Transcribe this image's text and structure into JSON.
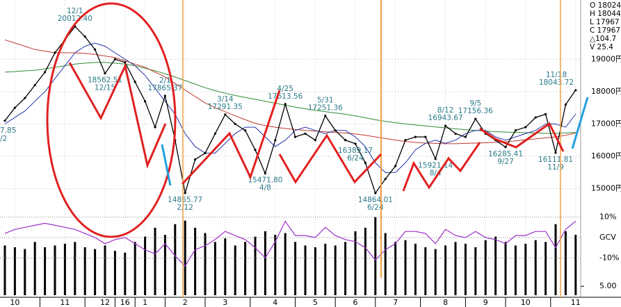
{
  "chart_data": {
    "type": "line",
    "info": [
      "O 18024",
      "H 18044",
      "L 17967",
      "C 17967",
      "△104.7",
      "V  25.4"
    ],
    "edge_labels": [
      "7.85",
      "/2"
    ],
    "categories": [
      null,
      "10",
      null,
      null,
      null,
      null,
      "11",
      null,
      null,
      null,
      "12",
      null,
      "16",
      null,
      "1",
      null,
      null,
      null,
      "2",
      null,
      null,
      null,
      "3",
      null,
      null,
      null,
      null,
      "4",
      null,
      null,
      null,
      "5",
      null,
      null,
      null,
      "6",
      null,
      null,
      null,
      "7",
      null,
      null,
      null,
      null,
      "8",
      null,
      null,
      null,
      "9",
      null,
      null,
      null,
      "10",
      null,
      null,
      null,
      null,
      "11"
    ],
    "ylim": [
      14250,
      20830
    ],
    "yticks": [
      {
        "value": 15000,
        "label": "15000円"
      },
      {
        "value": 16000,
        "label": "16000円"
      },
      {
        "value": 17000,
        "label": "17000円"
      },
      {
        "value": 18000,
        "label": "18000円"
      },
      {
        "value": 19000,
        "label": "19000円"
      }
    ],
    "grid": true,
    "series": [
      {
        "color": "#2e8b2e",
        "values": [
          18600,
          18620,
          18640,
          18660,
          18700,
          18750,
          18800,
          18850,
          18880,
          18900,
          18900,
          18880,
          18850,
          18800,
          18720,
          18640,
          18550,
          18450,
          18340,
          18230,
          18120,
          18030,
          17950,
          17880,
          17820,
          17760,
          17700,
          17640,
          17580,
          17520,
          17470,
          17420,
          17380,
          17340,
          17300,
          17250,
          17190,
          17130,
          17080,
          17040,
          17000,
          16970,
          16940,
          16910,
          16880,
          16850,
          16820,
          16800,
          16780,
          16760,
          16750,
          16740,
          16730,
          16720,
          16710,
          16710,
          16720,
          16740
        ]
      },
      {
        "color": "#c0392b",
        "values": [
          19600,
          19500,
          19400,
          19300,
          19250,
          19200,
          19200,
          19200,
          19180,
          19150,
          19100,
          19050,
          18950,
          18850,
          18750,
          18600,
          18450,
          18250,
          18050,
          17850,
          17650,
          17500,
          17380,
          17250,
          17130,
          17020,
          16950,
          16900,
          16860,
          16830,
          16800,
          16780,
          16760,
          16740,
          16720,
          16690,
          16650,
          16600,
          16550,
          16500,
          16460,
          16430,
          16410,
          16400,
          16390,
          16390,
          16400,
          16410,
          16420,
          16430,
          16450,
          16480,
          16510,
          16540,
          16570,
          16600,
          16650,
          16720
        ]
      },
      {
        "color": "#2233aa",
        "values": [
          17000,
          17200,
          17400,
          17700,
          18000,
          18400,
          18800,
          19200,
          19400,
          19500,
          19400,
          19200,
          19000,
          18800,
          18500,
          18100,
          17700,
          17300,
          16700,
          16300,
          16100,
          16100,
          16400,
          16700,
          16900,
          16900,
          16600,
          16300,
          16500,
          16800,
          16900,
          16800,
          16700,
          16800,
          16800,
          16600,
          16300,
          15800,
          15500,
          15500,
          15800,
          16200,
          16400,
          16500,
          16400,
          16500,
          16700,
          16800,
          16800,
          16600,
          16500,
          16600,
          16700,
          16800,
          17000,
          17000,
          16900,
          17300
        ]
      },
      {
        "color": "#000000",
        "values": [
          17100,
          17500,
          17800,
          18200,
          18600,
          19200,
          19600,
          20012.4,
          19700,
          19300,
          18562.51,
          19000,
          18900,
          18300,
          17700,
          16900,
          17865.37,
          16500,
          14865.77,
          15900,
          16100,
          16700,
          17291.35,
          17000,
          16800,
          16200,
          15471.8,
          16500,
          17613.56,
          16600,
          16700,
          16500,
          17251.36,
          16800,
          16500,
          16389.17,
          15800,
          14864.01,
          15300,
          15700,
          16500,
          16600,
          16600,
          15921.14,
          16943.67,
          16700,
          16600,
          17156.36,
          16700,
          16500,
          16285.41,
          16800,
          16900,
          17200,
          17300,
          16111.81,
          17600,
          18043.72
        ]
      }
    ],
    "annotations": [
      {
        "date": "12/1",
        "value": 20012.4,
        "value_label": "20012.40"
      },
      {
        "date": "12/15",
        "value": 18562.51,
        "value_label": "18562.51"
      },
      {
        "date": "2/1",
        "value": 17865.37,
        "value_label": "17865.37"
      },
      {
        "date": "2/12",
        "value": 14865.77,
        "value_label": "14865.77"
      },
      {
        "date": "3/14",
        "value": 17291.35,
        "value_label": "17291.35"
      },
      {
        "date": "4/8",
        "value": 15471.8,
        "value_label": "15471.80"
      },
      {
        "date": "4/25",
        "value": 17613.56,
        "value_label": "17613.56"
      },
      {
        "date": "5/31",
        "value": 17251.36,
        "value_label": "17251.36"
      },
      {
        "date": "6/24",
        "value": 16389.17,
        "value_label": "16389.17"
      },
      {
        "date": "6/24",
        "value": 14864.01,
        "value_label": "14864.01"
      },
      {
        "date": "8/4",
        "value": 15921.14,
        "value_label": "15921.14"
      },
      {
        "date": "8/12",
        "value": 16943.67,
        "value_label": "16943.67"
      },
      {
        "date": "9/5",
        "value": 17156.36,
        "value_label": "17156.36"
      },
      {
        "date": "9/27",
        "value": 16285.41,
        "value_label": "16285.41"
      },
      {
        "date": "11/9",
        "value": 16111.81,
        "value_label": "16111.81"
      },
      {
        "date": "11/18",
        "value": 18043.72,
        "value_label": "18043.72"
      }
    ],
    "oscillator": {
      "ylim": [
        -15,
        15
      ],
      "yticks": [
        {
          "value": -10,
          "label": "-10%"
        },
        {
          "value": 0,
          "label": "GCV"
        },
        {
          "value": 10,
          "label": "10%"
        }
      ],
      "color": "#9b30c8",
      "values": [
        2,
        4,
        5,
        6,
        7,
        6,
        5,
        4,
        2,
        0,
        -3,
        -1,
        0,
        -3,
        -6,
        -8,
        -3,
        -9,
        -14,
        -6,
        -4,
        -1,
        3,
        1,
        -1,
        -5,
        -10,
        -2,
        8,
        1,
        1,
        0,
        5,
        1,
        -1,
        -2,
        -5,
        -11,
        -6,
        -3,
        3,
        3,
        2,
        -3,
        4,
        1,
        0,
        3,
        0,
        -1,
        -3,
        1,
        1,
        3,
        3,
        -5,
        4,
        8
      ]
    },
    "volume": {
      "ylim": [
        0,
        45
      ],
      "yticks": [
        {
          "value": 5,
          "label": "5.00"
        }
      ],
      "color": "#000000",
      "values": [
        28,
        27,
        26,
        30,
        27,
        28,
        29,
        30,
        27,
        26,
        28,
        25,
        24,
        30,
        33,
        38,
        34,
        40,
        42,
        38,
        35,
        30,
        32,
        28,
        30,
        33,
        36,
        34,
        35,
        30,
        28,
        27,
        29,
        28,
        30,
        36,
        38,
        44,
        35,
        30,
        31,
        29,
        27,
        26,
        28,
        30,
        29,
        27,
        31,
        33,
        30,
        28,
        29,
        31,
        30,
        40,
        36,
        34
      ]
    }
  }
}
